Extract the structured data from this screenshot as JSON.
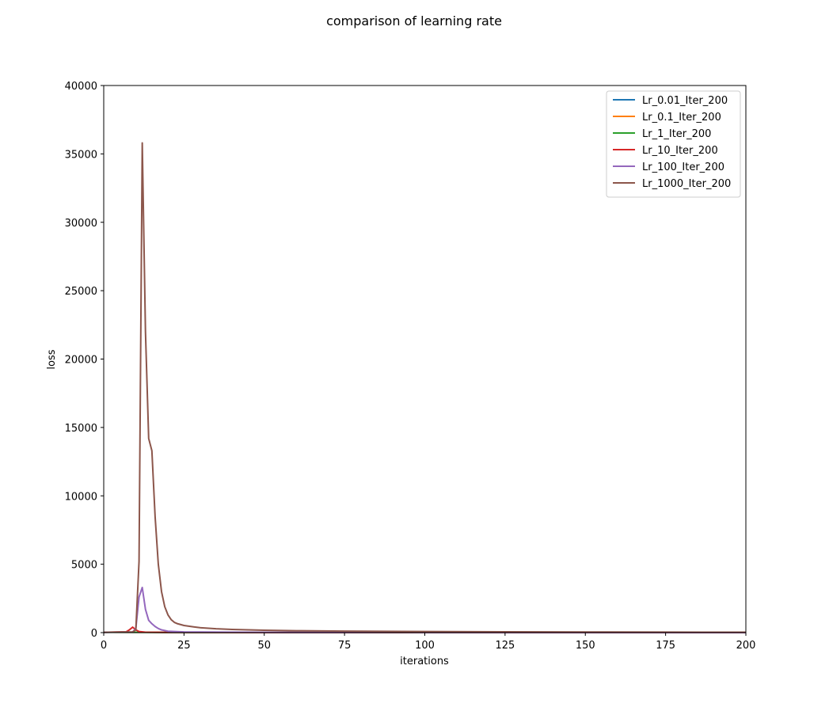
{
  "chart_data": {
    "type": "line",
    "title": "comparison of learning rate",
    "xlabel": "iterations",
    "ylabel": "loss",
    "xlim": [
      0,
      200
    ],
    "ylim": [
      0,
      40000
    ],
    "xticks": [
      0,
      25,
      50,
      75,
      100,
      125,
      150,
      175,
      200
    ],
    "yticks": [
      0,
      5000,
      10000,
      15000,
      20000,
      25000,
      30000,
      35000,
      40000
    ],
    "grid": false,
    "legend_position": "top-right",
    "series": [
      {
        "name": "Lr_0.01_Iter_200",
        "color": "#1f77b4",
        "points": [
          [
            0,
            30
          ],
          [
            50,
            25
          ],
          [
            100,
            20
          ],
          [
            150,
            15
          ],
          [
            200,
            12
          ]
        ]
      },
      {
        "name": "Lr_0.1_Iter_200",
        "color": "#ff7f0e",
        "points": [
          [
            0,
            30
          ],
          [
            50,
            15
          ],
          [
            100,
            8
          ],
          [
            150,
            5
          ],
          [
            200,
            3
          ]
        ]
      },
      {
        "name": "Lr_1_Iter_200",
        "color": "#2ca02c",
        "points": [
          [
            0,
            30
          ],
          [
            10,
            20
          ],
          [
            25,
            10
          ],
          [
            50,
            5
          ],
          [
            100,
            2
          ],
          [
            200,
            1
          ]
        ]
      },
      {
        "name": "Lr_10_Iter_200",
        "color": "#d62728",
        "points": [
          [
            0,
            20
          ],
          [
            7,
            60
          ],
          [
            8,
            200
          ],
          [
            9,
            400
          ],
          [
            10,
            200
          ],
          [
            11,
            80
          ],
          [
            13,
            30
          ],
          [
            20,
            15
          ],
          [
            50,
            8
          ],
          [
            100,
            4
          ],
          [
            200,
            2
          ]
        ]
      },
      {
        "name": "Lr_100_Iter_200",
        "color": "#9467bd",
        "points": [
          [
            0,
            20
          ],
          [
            9,
            40
          ],
          [
            10,
            300
          ],
          [
            11,
            2600
          ],
          [
            12,
            3300
          ],
          [
            13,
            1700
          ],
          [
            14,
            900
          ],
          [
            15,
            650
          ],
          [
            16,
            450
          ],
          [
            17,
            300
          ],
          [
            18,
            200
          ],
          [
            20,
            100
          ],
          [
            25,
            50
          ],
          [
            50,
            20
          ],
          [
            100,
            10
          ],
          [
            200,
            5
          ]
        ]
      },
      {
        "name": "Lr_1000_Iter_200",
        "color": "#8c564b",
        "points": [
          [
            0,
            20
          ],
          [
            9,
            50
          ],
          [
            10,
            200
          ],
          [
            11,
            5200
          ],
          [
            12,
            35800
          ],
          [
            13,
            22000
          ],
          [
            14,
            14200
          ],
          [
            15,
            13300
          ],
          [
            16,
            8500
          ],
          [
            17,
            5000
          ],
          [
            18,
            3000
          ],
          [
            19,
            1900
          ],
          [
            20,
            1300
          ],
          [
            21,
            950
          ],
          [
            22,
            750
          ],
          [
            23,
            650
          ],
          [
            25,
            520
          ],
          [
            28,
            420
          ],
          [
            30,
            360
          ],
          [
            35,
            280
          ],
          [
            40,
            230
          ],
          [
            45,
            200
          ],
          [
            50,
            170
          ],
          [
            60,
            140
          ],
          [
            75,
            110
          ],
          [
            100,
            80
          ],
          [
            125,
            60
          ],
          [
            150,
            45
          ],
          [
            175,
            35
          ],
          [
            200,
            28
          ]
        ]
      }
    ]
  }
}
